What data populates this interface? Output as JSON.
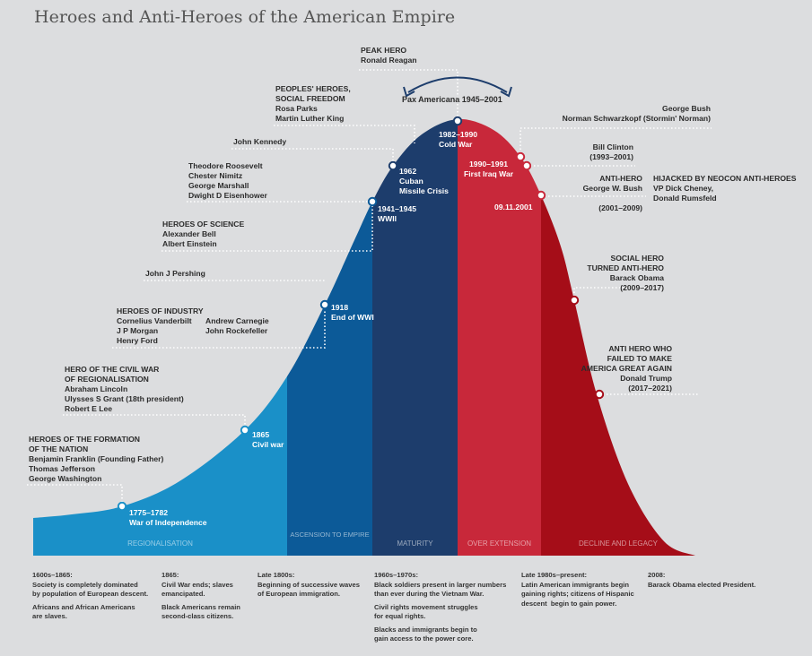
{
  "title": "Heroes and Anti-Heroes of the American Empire",
  "colors": {
    "regionalisation": "#1a90c8",
    "ascension": "#0c5a98",
    "maturity": "#1d3d6c",
    "over_extension": "#c8283a",
    "decline": "#a50d18",
    "background": "#dcdddf"
  },
  "bands": [
    "REGIONALISATION",
    "ASCENSION TO EMPIRE",
    "MATURITY",
    "OVER EXTENSION",
    "DECLINE AND LEGACY"
  ],
  "pax": "Pax Americana 1945–2001",
  "events": {
    "e1775": [
      "1775–1782",
      "War of Independence"
    ],
    "e1865": [
      "1865",
      "Civil war"
    ],
    "e1918": [
      "1918",
      "End of WWI"
    ],
    "e1941": [
      "1941–1945",
      "WWII"
    ],
    "e1962": [
      "1962",
      "Cuban",
      "Missile Crisis"
    ],
    "e1982": [
      "1982–1990",
      "Cold War"
    ],
    "e1990": [
      "1990–1991",
      "First Iraq War"
    ],
    "e2001": "09.11.2001"
  },
  "heroes": {
    "formation": [
      "HEROES OF THE FORMATION",
      "OF THE NATION",
      "Benjamin Franklin (Founding Father)",
      "Thomas Jefferson",
      "George Washington"
    ],
    "civil_war": [
      "HERO OF THE CIVIL WAR",
      "OF REGIONALISATION",
      "Abraham Lincoln",
      "Ulysses S Grant (18th president)",
      "Robert E Lee"
    ],
    "industry": [
      "HEROES OF INDUSTRY",
      "Cornelius Vanderbilt",
      "J P Morgan",
      "Henry Ford",
      "Andrew Carnegie",
      "John Rockefeller"
    ],
    "pershing": "John J Pershing",
    "science": [
      "HEROES OF SCIENCE",
      "Alexander Bell",
      "Albert Einstein"
    ],
    "roosevelt": [
      "Theodore Roosevelt",
      "Chester Nimitz",
      "George Marshall",
      "Dwight D Eisenhower"
    ],
    "kennedy": "John Kennedy",
    "peoples": [
      "PEOPLES' HEROES,",
      "SOCIAL FREEDOM",
      "Rosa Parks",
      "Martin Luther King"
    ],
    "peak": [
      "PEAK HERO",
      "Ronald Reagan"
    ],
    "bush": [
      "George Bush",
      "Norman Schwarzkopf (Stormin' Norman)"
    ],
    "clinton": [
      "Bill Clinton",
      "(1993–2001)"
    ],
    "antihero": [
      "ANTI-HERO",
      "George W. Bush",
      "(2001–2009)"
    ],
    "neocon": [
      "HIJACKED BY NEOCON ANTI-HEROES",
      "VP Dick Cheney,",
      "Donald Rumsfeld"
    ],
    "obama": [
      "SOCIAL HERO",
      "TURNED ANTI-HERO",
      "Barack Obama",
      "(2009–2017)"
    ],
    "trump": [
      "ANTI HERO WHO",
      "FAILED TO MAKE",
      "AMERICA GREAT AGAIN",
      "Donald Trump",
      "(2017–2021)"
    ]
  },
  "notes": [
    {
      "head": "1600s–1865:",
      "paras": [
        "Society is completely dominated\nby population of European descent.",
        "Africans and African Americans\nare slaves."
      ]
    },
    {
      "head": "1865:",
      "paras": [
        "Civil War ends; slaves\nemancipated.",
        "Black Americans remain\nsecond-class citizens."
      ]
    },
    {
      "head": "Late 1800s:",
      "paras": [
        "Beginning of successive waves\nof European immigration."
      ]
    },
    {
      "head": "1960s–1970s:",
      "paras": [
        "Black soldiers present in larger numbers\nthan ever during the Vietnam War.",
        "Civil rights movement struggles\nfor equal rights.",
        "Blacks and immigrants begin to\ngain access to the power core."
      ]
    },
    {
      "head": "Late 1980s–present:",
      "paras": [
        "Latin American immigrants begin\ngaining rights; citizens of Hispanic\ndescent  begin to gain power."
      ]
    },
    {
      "head": "2008:",
      "paras": [
        "Barack Obama elected President."
      ]
    }
  ]
}
